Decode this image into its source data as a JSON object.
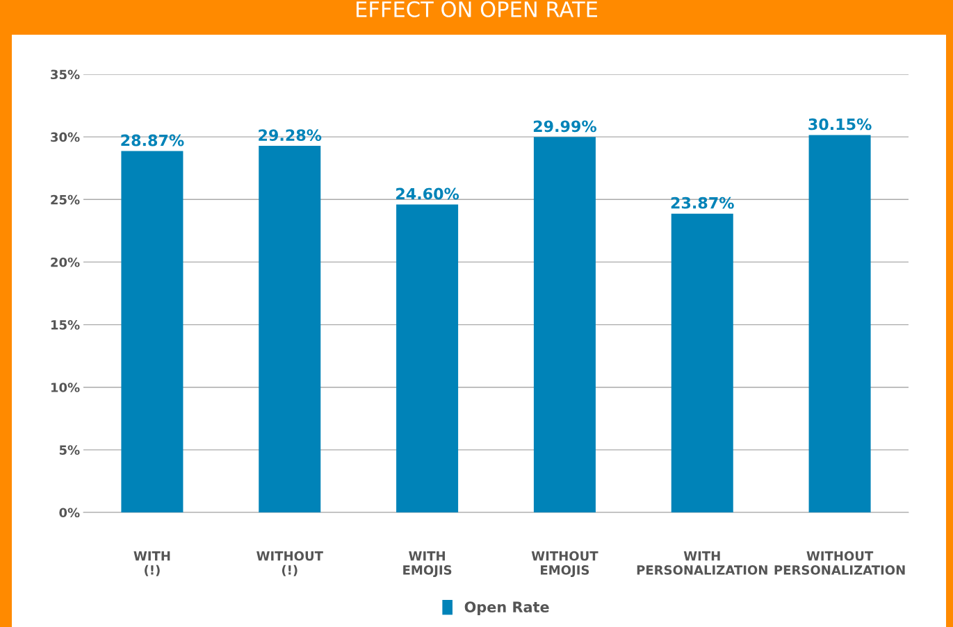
{
  "chart_data": {
    "type": "bar",
    "title": "EFFECT ON OPEN RATE",
    "categories": [
      "WITH\n(!)",
      "WITHOUT\n(!)",
      "WITH\nEMOJIS",
      "WITHOUT\nEMOJIS",
      "WITH\nPERSONALIZATION",
      "WITHOUT\nPERSONALIZATION"
    ],
    "series": [
      {
        "name": "Open Rate",
        "color": "#0083b8",
        "values": [
          28.87,
          29.28,
          24.6,
          29.99,
          23.87,
          30.15
        ],
        "value_labels": [
          "28.87%",
          "29.28%",
          "24.60%",
          "29.99%",
          "23.87%",
          "30.15%"
        ]
      }
    ],
    "ylim": [
      0,
      35
    ],
    "yticks": [
      {
        "value": 0,
        "label": "0%"
      },
      {
        "value": 5,
        "label": "5%"
      },
      {
        "value": 10,
        "label": "10%"
      },
      {
        "value": 15,
        "label": "15%"
      },
      {
        "value": 20,
        "label": "20%"
      },
      {
        "value": 25,
        "label": "25%"
      },
      {
        "value": 30,
        "label": "30%"
      },
      {
        "value": 35,
        "label": "35%"
      }
    ],
    "grid": "y",
    "legend": "bottom"
  }
}
